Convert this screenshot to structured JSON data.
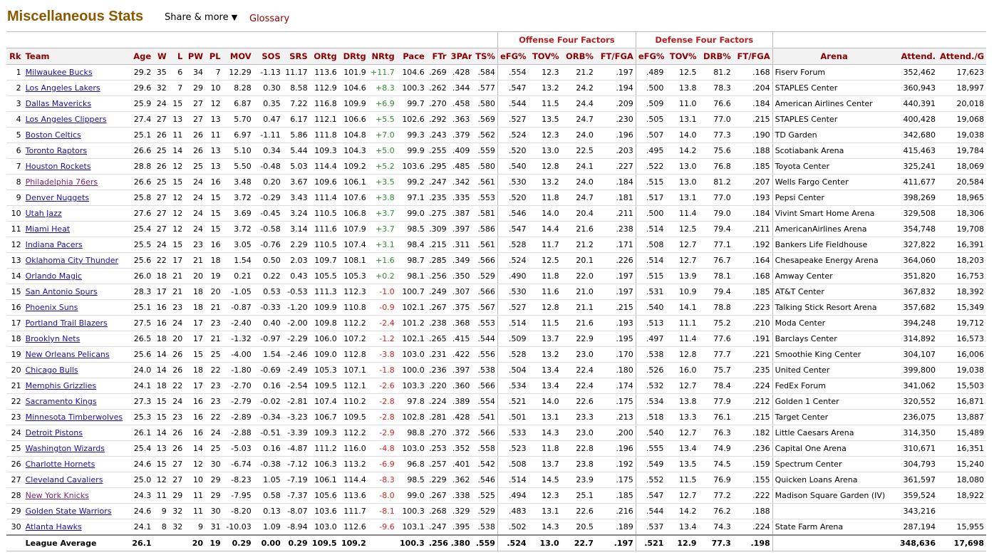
{
  "page": {
    "title": "Miscellaneous Stats",
    "share_label": "Share & more",
    "share_arrow": "▼",
    "glossary_label": "Glossary"
  },
  "groups": {
    "offense": "Offense Four Factors",
    "defense": "Defense Four Factors"
  },
  "columns": [
    "Rk",
    "Team",
    "Age",
    "W",
    "L",
    "PW",
    "PL",
    "MOV",
    "SOS",
    "SRS",
    "ORtg",
    "DRtg",
    "NRtg",
    "Pace",
    "FTr",
    "3PAr",
    "TS%",
    "eFG%",
    "TOV%",
    "ORB%",
    "FT/FGA",
    "eFG%",
    "TOV%",
    "DRB%",
    "FT/FGA",
    "Arena",
    "Attend.",
    "Attend./G"
  ],
  "rows": [
    [
      "1",
      "Milwaukee Bucks",
      "29.2",
      "35",
      "6",
      "34",
      "7",
      "12.29",
      "-1.13",
      "11.17",
      "113.6",
      "101.9",
      "+11.7",
      "104.6",
      ".269",
      ".428",
      ".584",
      ".554",
      "12.3",
      "21.2",
      ".197",
      ".489",
      "12.5",
      "81.2",
      ".168",
      "Fiserv Forum",
      "352,462",
      "17,623"
    ],
    [
      "2",
      "Los Angeles Lakers",
      "29.6",
      "32",
      "7",
      "29",
      "10",
      "8.28",
      "0.30",
      "8.58",
      "112.9",
      "104.6",
      "+8.3",
      "100.3",
      ".262",
      ".344",
      ".577",
      ".547",
      "13.2",
      "24.2",
      ".194",
      ".500",
      "13.8",
      "78.3",
      ".204",
      "STAPLES Center",
      "360,943",
      "18,997"
    ],
    [
      "3",
      "Dallas Mavericks",
      "25.9",
      "24",
      "15",
      "27",
      "12",
      "6.87",
      "0.35",
      "7.22",
      "116.8",
      "109.9",
      "+6.9",
      "99.7",
      ".270",
      ".458",
      ".580",
      ".544",
      "11.5",
      "24.4",
      ".209",
      ".509",
      "11.0",
      "76.6",
      ".184",
      "American Airlines Center",
      "440,391",
      "20,018"
    ],
    [
      "4",
      "Los Angeles Clippers",
      "27.4",
      "27",
      "13",
      "27",
      "13",
      "5.70",
      "0.47",
      "6.17",
      "112.1",
      "106.6",
      "+5.5",
      "102.6",
      ".292",
      ".363",
      ".569",
      ".527",
      "13.5",
      "24.7",
      ".230",
      ".505",
      "13.1",
      "77.0",
      ".215",
      "STAPLES Center",
      "400,428",
      "19,068"
    ],
    [
      "5",
      "Boston Celtics",
      "25.1",
      "26",
      "11",
      "26",
      "11",
      "6.97",
      "-1.11",
      "5.86",
      "111.8",
      "104.8",
      "+7.0",
      "99.3",
      ".243",
      ".379",
      ".562",
      ".524",
      "12.3",
      "24.0",
      ".196",
      ".507",
      "14.0",
      "77.3",
      ".190",
      "TD Garden",
      "342,680",
      "19,038"
    ],
    [
      "6",
      "Toronto Raptors",
      "26.6",
      "25",
      "14",
      "26",
      "13",
      "5.10",
      "0.34",
      "5.44",
      "109.3",
      "104.3",
      "+5.0",
      "99.9",
      ".255",
      ".409",
      ".559",
      ".520",
      "13.0",
      "22.5",
      ".203",
      ".495",
      "14.2",
      "75.6",
      ".188",
      "Scotiabank Arena",
      "415,463",
      "19,784"
    ],
    [
      "7",
      "Houston Rockets",
      "28.8",
      "26",
      "12",
      "25",
      "13",
      "5.50",
      "-0.48",
      "5.03",
      "114.4",
      "109.2",
      "+5.2",
      "103.6",
      ".295",
      ".485",
      ".580",
      ".540",
      "12.8",
      "24.1",
      ".227",
      ".522",
      "13.0",
      "76.8",
      ".185",
      "Toyota Center",
      "325,241",
      "18,069"
    ],
    [
      "8",
      "Philadelphia 76ers",
      "26.6",
      "25",
      "15",
      "24",
      "16",
      "3.48",
      "0.20",
      "3.67",
      "109.6",
      "106.1",
      "+3.5",
      "99.2",
      ".247",
      ".342",
      ".561",
      ".530",
      "13.2",
      "24.0",
      ".184",
      ".515",
      "13.0",
      "81.2",
      ".207",
      "Wells Fargo Center",
      "411,677",
      "20,584"
    ],
    [
      "9",
      "Denver Nuggets",
      "25.8",
      "27",
      "12",
      "24",
      "15",
      "3.72",
      "-0.29",
      "3.43",
      "111.4",
      "107.6",
      "+3.8",
      "97.1",
      ".235",
      ".335",
      ".553",
      ".520",
      "11.8",
      "24.7",
      ".181",
      ".517",
      "13.1",
      "77.0",
      ".193",
      "Pepsi Center",
      "398,269",
      "18,965"
    ],
    [
      "10",
      "Utah Jazz",
      "27.6",
      "27",
      "12",
      "24",
      "15",
      "3.69",
      "-0.45",
      "3.24",
      "110.5",
      "106.8",
      "+3.7",
      "99.0",
      ".275",
      ".387",
      ".581",
      ".546",
      "14.0",
      "20.4",
      ".211",
      ".500",
      "11.4",
      "79.0",
      ".184",
      "Vivint Smart Home Arena",
      "329,508",
      "18,306"
    ],
    [
      "11",
      "Miami Heat",
      "25.4",
      "27",
      "12",
      "24",
      "15",
      "3.72",
      "-0.58",
      "3.14",
      "111.6",
      "107.9",
      "+3.7",
      "98.5",
      ".309",
      ".397",
      ".586",
      ".547",
      "14.4",
      "21.6",
      ".238",
      ".514",
      "12.5",
      "79.4",
      ".211",
      "AmericanAirlines Arena",
      "354,748",
      "19,708"
    ],
    [
      "12",
      "Indiana Pacers",
      "25.5",
      "24",
      "15",
      "23",
      "16",
      "3.05",
      "-0.76",
      "2.29",
      "110.5",
      "107.4",
      "+3.1",
      "98.4",
      ".215",
      ".311",
      ".561",
      ".528",
      "11.7",
      "21.2",
      ".171",
      ".508",
      "12.7",
      "77.1",
      ".192",
      "Bankers Life Fieldhouse",
      "327,822",
      "16,391"
    ],
    [
      "13",
      "Oklahoma City Thunder",
      "25.6",
      "22",
      "17",
      "21",
      "18",
      "1.54",
      "0.50",
      "2.03",
      "109.7",
      "108.1",
      "+1.6",
      "98.7",
      ".285",
      ".349",
      ".566",
      ".524",
      "12.5",
      "20.1",
      ".226",
      ".514",
      "12.7",
      "76.7",
      ".164",
      "Chesapeake Energy Arena",
      "364,060",
      "18,203"
    ],
    [
      "14",
      "Orlando Magic",
      "26.0",
      "18",
      "21",
      "20",
      "19",
      "0.21",
      "0.22",
      "0.43",
      "105.5",
      "105.3",
      "+0.2",
      "98.1",
      ".256",
      ".350",
      ".529",
      ".490",
      "11.8",
      "22.0",
      ".197",
      ".515",
      "13.9",
      "78.1",
      ".168",
      "Amway Center",
      "351,820",
      "16,753"
    ],
    [
      "15",
      "San Antonio Spurs",
      "28.3",
      "17",
      "21",
      "18",
      "20",
      "-1.05",
      "0.53",
      "-0.53",
      "111.3",
      "112.3",
      "-1.0",
      "100.7",
      ".249",
      ".307",
      ".566",
      ".530",
      "11.6",
      "21.0",
      ".197",
      ".531",
      "10.9",
      "79.4",
      ".185",
      "AT&T Center",
      "367,832",
      "18,392"
    ],
    [
      "16",
      "Phoenix Suns",
      "25.1",
      "16",
      "23",
      "18",
      "21",
      "-0.87",
      "-0.33",
      "-1.20",
      "109.9",
      "110.8",
      "-0.9",
      "102.1",
      ".267",
      ".375",
      ".567",
      ".527",
      "12.8",
      "21.1",
      ".215",
      ".540",
      "14.1",
      "78.8",
      ".223",
      "Talking Stick Resort Arena",
      "357,682",
      "15,349"
    ],
    [
      "17",
      "Portland Trail Blazers",
      "27.5",
      "16",
      "24",
      "17",
      "23",
      "-2.40",
      "0.40",
      "-2.00",
      "109.8",
      "112.2",
      "-2.4",
      "101.2",
      ".238",
      ".368",
      ".553",
      ".514",
      "11.5",
      "21.6",
      ".193",
      ".513",
      "11.1",
      "75.2",
      ".210",
      "Moda Center",
      "394,248",
      "19,712"
    ],
    [
      "18",
      "Brooklyn Nets",
      "26.5",
      "18",
      "20",
      "17",
      "21",
      "-1.32",
      "-0.97",
      "-2.29",
      "106.0",
      "107.2",
      "-1.2",
      "102.1",
      ".265",
      ".415",
      ".544",
      ".509",
      "13.7",
      "22.9",
      ".195",
      ".497",
      "11.4",
      "77.6",
      ".191",
      "Barclays Center",
      "314,892",
      "16,573"
    ],
    [
      "19",
      "New Orleans Pelicans",
      "25.6",
      "14",
      "26",
      "15",
      "25",
      "-4.00",
      "1.54",
      "-2.46",
      "109.0",
      "112.8",
      "-3.8",
      "103.0",
      ".231",
      ".422",
      ".556",
      ".528",
      "13.2",
      "23.0",
      ".170",
      ".538",
      "12.8",
      "77.7",
      ".221",
      "Smoothie King Center",
      "304,107",
      "16,006"
    ],
    [
      "20",
      "Chicago Bulls",
      "24.0",
      "14",
      "26",
      "18",
      "22",
      "-1.80",
      "-0.69",
      "-2.49",
      "105.3",
      "107.1",
      "-1.8",
      "100.0",
      ".236",
      ".397",
      ".538",
      ".504",
      "13.4",
      "22.4",
      ".180",
      ".526",
      "16.0",
      "75.7",
      ".235",
      "United Center",
      "399,800",
      "19,038"
    ],
    [
      "21",
      "Memphis Grizzlies",
      "24.1",
      "18",
      "22",
      "17",
      "23",
      "-2.70",
      "0.16",
      "-2.54",
      "109.5",
      "112.1",
      "-2.6",
      "103.3",
      ".220",
      ".360",
      ".566",
      ".534",
      "13.4",
      "22.4",
      ".174",
      ".532",
      "12.7",
      "78.4",
      ".224",
      "FedEx Forum",
      "341,062",
      "15,503"
    ],
    [
      "22",
      "Sacramento Kings",
      "27.3",
      "15",
      "24",
      "16",
      "23",
      "-2.79",
      "-0.02",
      "-2.81",
      "107.4",
      "110.2",
      "-2.8",
      "97.8",
      ".224",
      ".389",
      ".554",
      ".521",
      "14.0",
      "22.6",
      ".175",
      ".534",
      "13.8",
      "77.9",
      ".212",
      "Golden 1 Center",
      "320,552",
      "16,871"
    ],
    [
      "23",
      "Minnesota Timberwolves",
      "25.3",
      "15",
      "23",
      "16",
      "22",
      "-2.89",
      "-0.34",
      "-3.23",
      "106.7",
      "109.5",
      "-2.8",
      "102.8",
      ".281",
      ".428",
      ".541",
      ".501",
      "13.1",
      "23.3",
      ".213",
      ".518",
      "13.3",
      "76.1",
      ".215",
      "Target Center",
      "236,075",
      "13,887"
    ],
    [
      "24",
      "Detroit Pistons",
      "26.1",
      "14",
      "26",
      "16",
      "24",
      "-2.88",
      "-0.51",
      "-3.39",
      "109.3",
      "112.2",
      "-2.9",
      "98.8",
      ".270",
      ".372",
      ".566",
      ".533",
      "14.3",
      "23.0",
      ".200",
      ".540",
      "12.7",
      "76.3",
      ".182",
      "Little Caesars Arena",
      "314,350",
      "15,489"
    ],
    [
      "25",
      "Washington Wizards",
      "25.4",
      "13",
      "26",
      "14",
      "25",
      "-5.03",
      "0.16",
      "-4.87",
      "111.2",
      "116.0",
      "-4.8",
      "103.0",
      ".253",
      ".352",
      ".558",
      ".523",
      "11.8",
      "22.8",
      ".196",
      ".555",
      "13.4",
      "74.9",
      ".236",
      "Capital One Arena",
      "310,671",
      "16,351"
    ],
    [
      "26",
      "Charlotte Hornets",
      "24.6",
      "15",
      "27",
      "12",
      "30",
      "-6.74",
      "-0.38",
      "-7.12",
      "106.3",
      "113.2",
      "-6.9",
      "96.8",
      ".257",
      ".401",
      ".542",
      ".508",
      "13.7",
      "23.8",
      ".192",
      ".549",
      "13.5",
      "74.5",
      ".159",
      "Spectrum Center",
      "304,793",
      "15,240"
    ],
    [
      "27",
      "Cleveland Cavaliers",
      "25.0",
      "12",
      "27",
      "10",
      "29",
      "-8.23",
      "1.05",
      "-7.19",
      "106.1",
      "114.4",
      "-8.3",
      "98.5",
      ".229",
      ".362",
      ".546",
      ".514",
      "14.5",
      "23.9",
      ".175",
      ".552",
      "11.5",
      "76.9",
      ".155",
      "Quicken Loans Arena",
      "361,597",
      "18,080"
    ],
    [
      "28",
      "New York Knicks",
      "24.3",
      "11",
      "29",
      "11",
      "29",
      "-7.95",
      "0.58",
      "-7.37",
      "105.6",
      "113.6",
      "-8.0",
      "99.0",
      ".267",
      ".338",
      ".525",
      ".494",
      "12.3",
      "25.1",
      ".185",
      ".547",
      "12.7",
      "77.2",
      ".222",
      "Madison Square Garden (IV)",
      "359,524",
      "18,922"
    ],
    [
      "29",
      "Golden State Warriors",
      "24.6",
      "9",
      "32",
      "11",
      "30",
      "-8.20",
      "0.13",
      "-8.07",
      "103.6",
      "111.7",
      "-8.1",
      "100.3",
      ".268",
      ".329",
      ".529",
      ".483",
      "13.1",
      "22.6",
      ".216",
      ".544",
      "14.2",
      "76.2",
      ".188",
      "",
      "343,216",
      ""
    ],
    [
      "30",
      "Atlanta Hawks",
      "24.1",
      "8",
      "32",
      "9",
      "31",
      "-10.03",
      "1.09",
      "-8.94",
      "103.0",
      "112.6",
      "-9.6",
      "103.1",
      ".247",
      ".395",
      ".538",
      ".502",
      "14.3",
      "20.5",
      ".189",
      ".537",
      "13.4",
      "74.3",
      ".224",
      "State Farm Arena",
      "287,194",
      "15,955"
    ]
  ],
  "visited_team_rows": [
    7,
    27
  ],
  "league_average": [
    "",
    "League Average",
    "26.1",
    "",
    "",
    "20",
    "19",
    "0.29",
    "0.00",
    "0.29",
    "109.5",
    "109.2",
    "",
    "100.3",
    ".256",
    ".380",
    ".559",
    ".524",
    "13.0",
    "22.7",
    ".197",
    ".521",
    "12.9",
    "77.3",
    ".198",
    "",
    "348,636",
    "17,698"
  ],
  "colors": {
    "title": "#8b5a00",
    "header_text": "#8b0000",
    "link": "#1a0dab",
    "positive": "#2e8b2e",
    "negative": "#d62020"
  }
}
